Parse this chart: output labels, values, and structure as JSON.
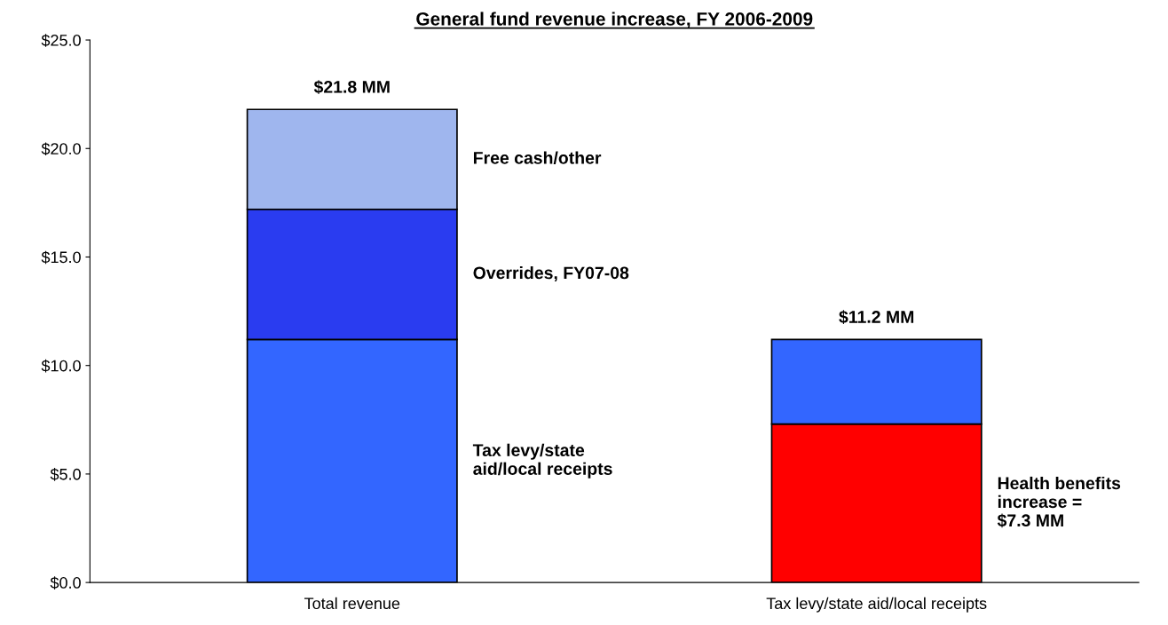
{
  "chart_data": {
    "type": "bar",
    "title": "General fund revenue increase, FY 2006-2009",
    "categories": [
      "Total revenue",
      "Tax levy/state aid/local receipts"
    ],
    "stacked": true,
    "series": [
      {
        "name": "Tax levy/state\naid/local receipts",
        "color": "#3366ff",
        "values": [
          11.2,
          null
        ]
      },
      {
        "name": "Health benefits\nincrease =\n$7.3 MM",
        "color": "#ff0000",
        "values": [
          null,
          7.3
        ]
      },
      {
        "name": "Overrides, FY07-08",
        "color": "#2a3cf0",
        "values": [
          6.0,
          null
        ]
      },
      {
        "color": "#3366ff",
        "values": [
          null,
          3.9
        ]
      },
      {
        "name": "Free cash/other",
        "color": "#9fb6ee",
        "values": [
          4.6,
          null
        ]
      }
    ],
    "totals": [
      "$21.8 MM",
      "$11.2 MM"
    ],
    "ylim": [
      0,
      25
    ],
    "yticks": [
      {
        "value": 0,
        "label": "$0.0"
      },
      {
        "value": 5,
        "label": "$5.0"
      },
      {
        "value": 10,
        "label": "$10.0"
      },
      {
        "value": 15,
        "label": "$15.0"
      },
      {
        "value": 20,
        "label": "$20.0"
      },
      {
        "value": 25,
        "label": "$25.0"
      }
    ],
    "grid": false,
    "legend": false
  }
}
